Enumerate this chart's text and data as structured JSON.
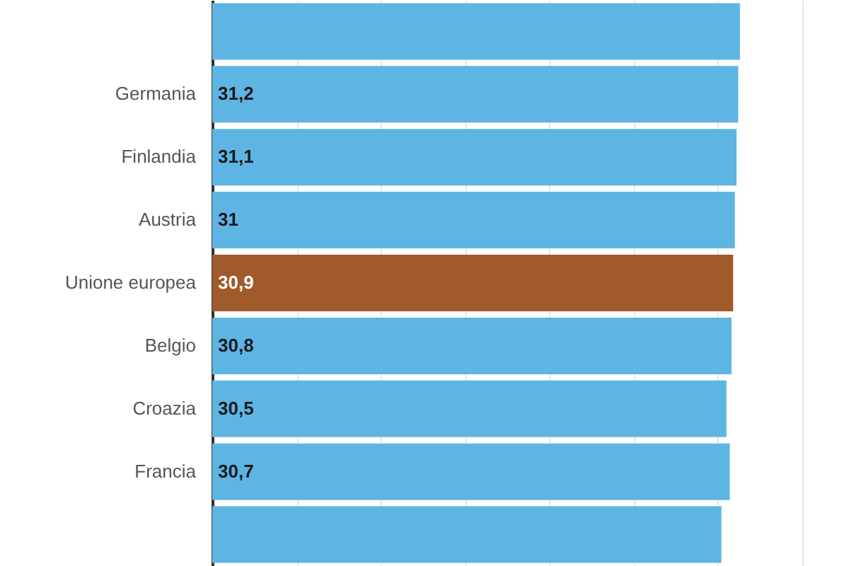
{
  "chart_data": {
    "type": "bar",
    "orientation": "horizontal",
    "categories": [
      null,
      "Germania",
      "Finlandia",
      "Austria",
      "Unione europea",
      "Belgio",
      "Croazia",
      "Francia",
      null
    ],
    "values": [
      31.3,
      31.2,
      31.1,
      31,
      30.9,
      30.8,
      30.5,
      30.7,
      30.2
    ],
    "value_labels": [
      null,
      "31,2",
      "31,1",
      "31",
      "30,9",
      "30,8",
      "30,5",
      "30,7",
      null
    ],
    "colors": [
      "#5eb5e4",
      "#5eb5e4",
      "#5eb5e4",
      "#5eb5e4",
      "#a05a2c",
      "#5eb5e4",
      "#5eb5e4",
      "#5eb5e4",
      "#5eb5e4"
    ],
    "xlim": [
      0,
      35
    ],
    "xticks": [
      {
        "value": 0,
        "label": null
      },
      {
        "value": 5,
        "label": null
      },
      {
        "value": 10,
        "label": null
      },
      {
        "value": 15,
        "label": null
      },
      {
        "value": 20,
        "label": null
      },
      {
        "value": 25,
        "label": null
      },
      {
        "value": 30,
        "label": null
      },
      {
        "value": 35,
        "label": null
      }
    ],
    "tick_labels": "y",
    "grid": "x"
  }
}
